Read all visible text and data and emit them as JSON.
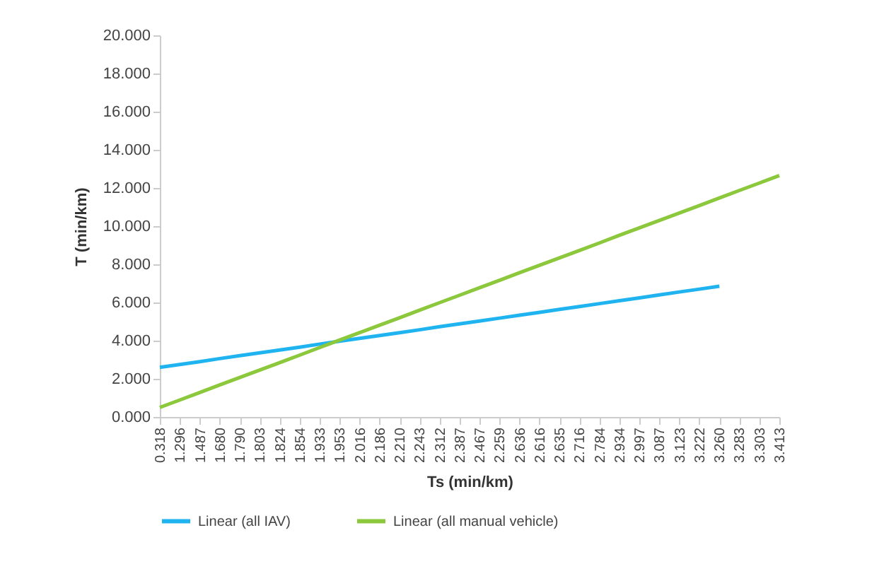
{
  "chart_data": {
    "type": "line",
    "xlabel": "Ts (min/km)",
    "ylabel": "T (min/km)",
    "categories": [
      "0.318",
      "1.296",
      "1.487",
      "1.680",
      "1.790",
      "1.803",
      "1.824",
      "1.854",
      "1.933",
      "1.953",
      "2.016",
      "2.186",
      "2.210",
      "2.243",
      "2.312",
      "2.387",
      "2.467",
      "2.259",
      "2.636",
      "2.616",
      "2.635",
      "2.716",
      "2.784",
      "2.934",
      "2.997",
      "3.087",
      "3.123",
      "3.222",
      "3.260",
      "3.283",
      "3.303",
      "3.413"
    ],
    "series": [
      {
        "name": "Linear (all IAV)",
        "color": "#1fb4f0",
        "values": [
          2.6,
          2.75,
          2.9,
          3.06,
          3.21,
          3.36,
          3.51,
          3.66,
          3.82,
          3.97,
          4.12,
          4.27,
          4.42,
          4.57,
          4.73,
          4.88,
          5.03,
          5.18,
          5.33,
          5.48,
          5.64,
          5.79,
          5.94,
          6.09,
          6.24,
          6.4,
          6.55,
          6.7,
          6.85,
          null,
          null,
          null
        ]
      },
      {
        "name": "Linear (all manual vehicle)",
        "color": "#8cc83c",
        "values": [
          0.5,
          0.89,
          1.28,
          1.68,
          2.07,
          2.46,
          2.85,
          3.24,
          3.64,
          4.03,
          4.42,
          4.81,
          5.2,
          5.6,
          5.99,
          6.38,
          6.77,
          7.16,
          7.56,
          7.95,
          8.34,
          8.73,
          9.12,
          9.52,
          9.91,
          10.3,
          10.69,
          11.08,
          11.48,
          11.87,
          12.26,
          12.65
        ]
      }
    ],
    "ylim": [
      0,
      20
    ],
    "yticks": [
      {
        "value": 0,
        "label": "0.000"
      },
      {
        "value": 2,
        "label": "2.000"
      },
      {
        "value": 4,
        "label": "4.000"
      },
      {
        "value": 6,
        "label": "6.000"
      },
      {
        "value": 8,
        "label": "8.000"
      },
      {
        "value": 10,
        "label": "10.000"
      },
      {
        "value": 12,
        "label": "12.000"
      },
      {
        "value": 14,
        "label": "14.000"
      },
      {
        "value": 16,
        "label": "16.000"
      },
      {
        "value": 18,
        "label": "18.000"
      },
      {
        "value": 20,
        "label": "20.000"
      }
    ],
    "legend": "bottom",
    "grid": false,
    "line_style": "solid",
    "marker": "none"
  }
}
